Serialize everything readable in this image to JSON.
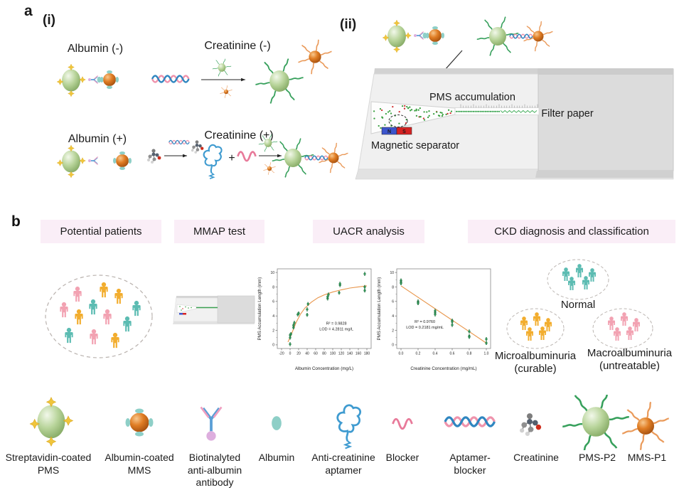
{
  "figure": {
    "panel_a": {
      "label": "a",
      "i": {
        "label": "(i)",
        "albumin_neg": "Albumin (-)",
        "creatinine_neg": "Creatinine (-)",
        "albumin_pos": "Albumin (+)",
        "creatinine_pos": "Creatinine (+)",
        "plus_sign": "+"
      },
      "ii": {
        "label": "(ii)",
        "pms_accumulation": "PMS accumulation",
        "filter_paper": "Filter paper",
        "magnetic_separator": "Magnetic separator",
        "magnet_north": "N",
        "magnet_south": "S"
      }
    },
    "panel_b": {
      "label": "b",
      "stages": [
        "Potential patients",
        "MMAP test",
        "UACR analysis",
        "CKD diagnosis and classification"
      ],
      "header_bg": "#faeef7",
      "palette": {
        "teal": "#5cbcb2",
        "orange": "#f2ad2e",
        "pink": "#f2a2b2"
      },
      "groups": {
        "patients": {
          "people": [
            "pink",
            "orange",
            "orange",
            "pink",
            "teal",
            "pink",
            "teal",
            "orange",
            "teal",
            "teal",
            "pink",
            "orange"
          ]
        },
        "normal": {
          "label": "Normal",
          "color": "teal",
          "count": 5
        },
        "micro": {
          "label": "Microalbuminuria",
          "sublabel": "(curable)",
          "color": "orange",
          "count": 5
        },
        "macro": {
          "label": "Macroalbuminuria",
          "sublabel": "(untreatable)",
          "color": "pink",
          "count": 5
        }
      },
      "legend": {
        "items": [
          {
            "icon": "streptavidin-coated-pms-icon",
            "lines": [
              "Streptavidin-coated",
              "PMS"
            ]
          },
          {
            "icon": "albumin-coated-mms-icon",
            "lines": [
              "Albumin-coated",
              "MMS"
            ]
          },
          {
            "icon": "biotinylated-antibody-icon",
            "lines": [
              "Biotinalyted",
              "anti-albumin",
              "antibody"
            ]
          },
          {
            "icon": "albumin-icon",
            "lines": [
              "Albumin"
            ]
          },
          {
            "icon": "anti-creatinine-aptamer-icon",
            "lines": [
              "Anti-creatinine",
              "aptamer"
            ]
          },
          {
            "icon": "blocker-icon",
            "lines": [
              "Blocker"
            ]
          },
          {
            "icon": "aptamer-blocker-icon",
            "lines": [
              "Aptamer-",
              "blocker"
            ]
          },
          {
            "icon": "creatinine-icon",
            "lines": [
              "Creatinine"
            ]
          },
          {
            "icon": "pms-p2-icon",
            "lines": [
              "PMS-P2"
            ]
          },
          {
            "icon": "mms-p1-icon",
            "lines": [
              "MMS-P1"
            ]
          }
        ]
      }
    }
  },
  "chart_data": [
    {
      "type": "scatter",
      "title": "",
      "xlabel": "Albumin Concentration (mg/L)",
      "ylabel": "PMS Accumulation Length (mm)",
      "xlim": [
        -20,
        180
      ],
      "ylim": [
        0,
        10
      ],
      "xticks": [
        -20,
        0,
        20,
        40,
        60,
        80,
        100,
        120,
        140,
        160,
        180
      ],
      "xtick_labels": [
        "-20",
        "0",
        "20",
        "40",
        "60",
        "80",
        "100",
        "120",
        "140",
        "160",
        "180"
      ],
      "yticks": [
        0,
        2,
        4,
        6,
        8,
        10
      ],
      "point_color": "#2f9858",
      "fit_color": "#e8954a",
      "points": [
        [
          0,
          0.1
        ],
        [
          0,
          1.0
        ],
        [
          0,
          1.35
        ],
        [
          2,
          1.5
        ],
        [
          8,
          2.4
        ],
        [
          8,
          2.7
        ],
        [
          10,
          3.05
        ],
        [
          18,
          4.2
        ],
        [
          20,
          4.35
        ],
        [
          40,
          4.15
        ],
        [
          40,
          4.9
        ],
        [
          42,
          5.65
        ],
        [
          88,
          6.4
        ],
        [
          88,
          6.65
        ],
        [
          90,
          6.95
        ],
        [
          115,
          7.2
        ],
        [
          117,
          8.25
        ],
        [
          117,
          8.45
        ],
        [
          175,
          7.5
        ],
        [
          175,
          8.0
        ],
        [
          175,
          9.8
        ]
      ],
      "fit": [
        [
          -5,
          0.4
        ],
        [
          2,
          1.3
        ],
        [
          8,
          2.2
        ],
        [
          15,
          3.2
        ],
        [
          25,
          4.3
        ],
        [
          35,
          5.1
        ],
        [
          50,
          5.9
        ],
        [
          65,
          6.5
        ],
        [
          80,
          6.9
        ],
        [
          100,
          7.3
        ],
        [
          120,
          7.6
        ],
        [
          140,
          7.85
        ],
        [
          160,
          8.0
        ],
        [
          180,
          8.15
        ]
      ],
      "annotations": [
        "R² = 0.9828",
        "LOD = 4.2811 mg/L"
      ],
      "annotation_pos": [
        0.63,
        0.7
      ],
      "grid": false,
      "legend_position": "none"
    },
    {
      "type": "scatter",
      "title": "",
      "xlabel": "Creatinine Concentration (mg/mL)",
      "ylabel": "PMS Accumulation Length (mm)",
      "xlim": [
        0,
        1.0
      ],
      "ylim": [
        0,
        10
      ],
      "xticks": [
        0,
        0.2,
        0.4,
        0.6,
        0.8,
        1.0
      ],
      "xtick_labels": [
        "0.0",
        "0.2",
        "0.4",
        "0.6",
        "0.8",
        "1.0"
      ],
      "yticks": [
        0,
        2,
        4,
        6,
        8,
        10
      ],
      "point_color": "#2f9858",
      "fit_color": "#e8954a",
      "points": [
        [
          0,
          8.9
        ],
        [
          0,
          8.65
        ],
        [
          0,
          8.5
        ],
        [
          0.2,
          6.0
        ],
        [
          0.2,
          5.85
        ],
        [
          0.2,
          5.75
        ],
        [
          0.4,
          4.7
        ],
        [
          0.4,
          4.45
        ],
        [
          0.4,
          4.2
        ],
        [
          0.6,
          3.35
        ],
        [
          0.6,
          3.2
        ],
        [
          0.6,
          2.75
        ],
        [
          0.8,
          1.85
        ],
        [
          0.8,
          1.2
        ],
        [
          0.8,
          1.1
        ],
        [
          1.0,
          0.8
        ],
        [
          1.0,
          0.25
        ]
      ],
      "fit": [
        [
          0,
          8.15
        ],
        [
          1.0,
          0.25
        ]
      ],
      "annotations": [
        "R² = 0.9760",
        "LOD = 0.2181 mg/mL"
      ],
      "annotation_pos": [
        0.3,
        0.68
      ],
      "grid": false,
      "legend_position": "none"
    }
  ]
}
